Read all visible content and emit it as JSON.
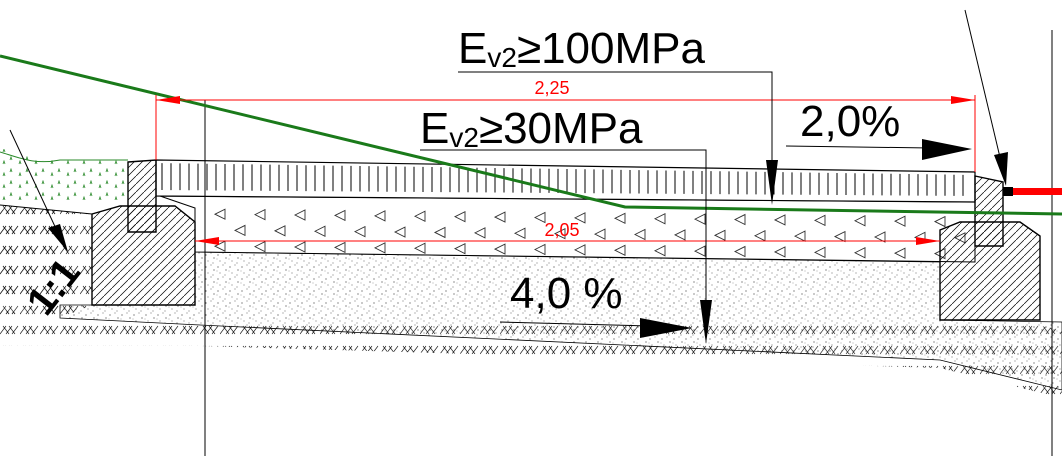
{
  "annotations": {
    "ev2_upper": {
      "prefix": "E",
      "subscript": "v2",
      "value": "≥100MPa"
    },
    "ev2_lower": {
      "prefix": "E",
      "subscript": "v2",
      "value": "≥30MPa"
    },
    "slope_top": "2,0%",
    "slope_bottom": "4,0 %",
    "slope_embankment": "1:1"
  },
  "dimensions": {
    "total_width": "2,25",
    "inner_width": "2,05"
  },
  "colors": {
    "ground_line": "#1a7a1a",
    "dimension": "#ff0000",
    "outline": "#000000",
    "edge_marker": "#ff0000"
  }
}
